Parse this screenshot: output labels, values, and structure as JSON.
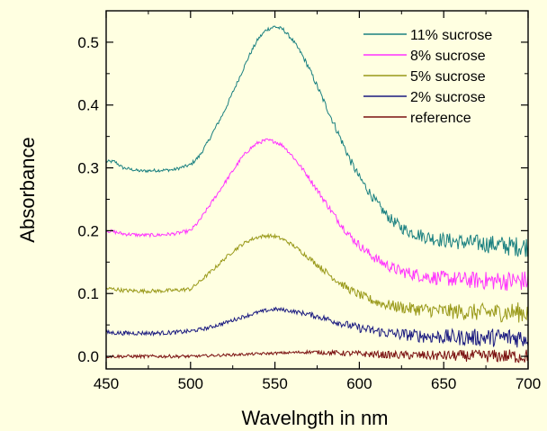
{
  "chart_data": {
    "type": "line",
    "title": "",
    "xlabel": "Wavelngth in nm",
    "ylabel": "Absorbance",
    "xlim": [
      450,
      700
    ],
    "ylim": [
      -0.02,
      0.55
    ],
    "xticks": [
      450,
      500,
      550,
      600,
      650,
      700
    ],
    "xtick_labels": [
      "450",
      "500",
      "550",
      "600",
      "650",
      "700"
    ],
    "yticks": [
      0.0,
      0.1,
      0.2,
      0.3,
      0.4,
      0.5
    ],
    "ytick_labels": [
      "0.0",
      "0.1",
      "0.2",
      "0.3",
      "0.4",
      "0.5"
    ],
    "grid": false,
    "legend_position": "top-right",
    "series": [
      {
        "name": "11% sucrose",
        "color": "#1a8080",
        "x": [
          450,
          455,
          460,
          470,
          480,
          490,
          500,
          505,
          510,
          515,
          520,
          525,
          530,
          535,
          540,
          545,
          550,
          555,
          560,
          565,
          570,
          575,
          580,
          585,
          590,
          595,
          600,
          605,
          610,
          615,
          620,
          625,
          630,
          640,
          650,
          660,
          670,
          680,
          690,
          700
        ],
        "y": [
          0.31,
          0.31,
          0.3,
          0.295,
          0.296,
          0.297,
          0.305,
          0.318,
          0.34,
          0.365,
          0.39,
          0.42,
          0.45,
          0.48,
          0.505,
          0.52,
          0.525,
          0.52,
          0.505,
          0.485,
          0.46,
          0.43,
          0.4,
          0.37,
          0.34,
          0.31,
          0.285,
          0.265,
          0.245,
          0.228,
          0.215,
          0.205,
          0.198,
          0.19,
          0.185,
          0.182,
          0.18,
          0.178,
          0.175,
          0.175
        ]
      },
      {
        "name": "8% sucrose",
        "color": "#ff33ff",
        "x": [
          450,
          455,
          460,
          470,
          480,
          490,
          500,
          505,
          510,
          515,
          520,
          525,
          530,
          535,
          540,
          545,
          550,
          555,
          560,
          565,
          570,
          575,
          580,
          585,
          590,
          595,
          600,
          605,
          610,
          615,
          620,
          625,
          630,
          640,
          650,
          660,
          670,
          680,
          690,
          700
        ],
        "y": [
          0.2,
          0.198,
          0.195,
          0.193,
          0.193,
          0.195,
          0.2,
          0.215,
          0.235,
          0.255,
          0.275,
          0.295,
          0.315,
          0.33,
          0.34,
          0.344,
          0.342,
          0.335,
          0.32,
          0.303,
          0.285,
          0.265,
          0.245,
          0.225,
          0.207,
          0.19,
          0.177,
          0.165,
          0.155,
          0.147,
          0.14,
          0.135,
          0.132,
          0.127,
          0.124,
          0.122,
          0.121,
          0.12,
          0.12,
          0.12
        ]
      },
      {
        "name": "5% sucrose",
        "color": "#999919",
        "x": [
          450,
          455,
          460,
          470,
          480,
          490,
          500,
          505,
          510,
          515,
          520,
          525,
          530,
          535,
          540,
          545,
          550,
          555,
          560,
          565,
          570,
          575,
          580,
          585,
          590,
          595,
          600,
          605,
          610,
          615,
          620,
          625,
          630,
          640,
          650,
          660,
          670,
          680,
          690,
          700
        ],
        "y": [
          0.108,
          0.107,
          0.105,
          0.104,
          0.104,
          0.105,
          0.107,
          0.118,
          0.13,
          0.142,
          0.155,
          0.167,
          0.177,
          0.185,
          0.19,
          0.192,
          0.191,
          0.186,
          0.178,
          0.168,
          0.157,
          0.146,
          0.135,
          0.124,
          0.114,
          0.105,
          0.098,
          0.092,
          0.087,
          0.083,
          0.08,
          0.078,
          0.076,
          0.074,
          0.072,
          0.071,
          0.07,
          0.07,
          0.07,
          0.07
        ]
      },
      {
        "name": "2% sucrose",
        "color": "#1a1a80",
        "x": [
          450,
          460,
          470,
          480,
          490,
          500,
          510,
          520,
          530,
          540,
          545,
          550,
          555,
          560,
          570,
          580,
          590,
          600,
          610,
          620,
          630,
          640,
          650,
          660,
          670,
          680,
          690,
          700
        ],
        "y": [
          0.038,
          0.037,
          0.037,
          0.037,
          0.038,
          0.04,
          0.045,
          0.053,
          0.062,
          0.07,
          0.073,
          0.075,
          0.074,
          0.072,
          0.067,
          0.06,
          0.052,
          0.045,
          0.04,
          0.036,
          0.034,
          0.032,
          0.031,
          0.03,
          0.03,
          0.03,
          0.03,
          0.03
        ]
      },
      {
        "name": "reference",
        "color": "#7a1010",
        "x": [
          450,
          500,
          520,
          540,
          560,
          570,
          580,
          600,
          620,
          650,
          700
        ],
        "y": [
          0.0,
          0.0,
          0.002,
          0.004,
          0.006,
          0.007,
          0.006,
          0.004,
          0.002,
          0.001,
          0.0
        ]
      }
    ]
  }
}
